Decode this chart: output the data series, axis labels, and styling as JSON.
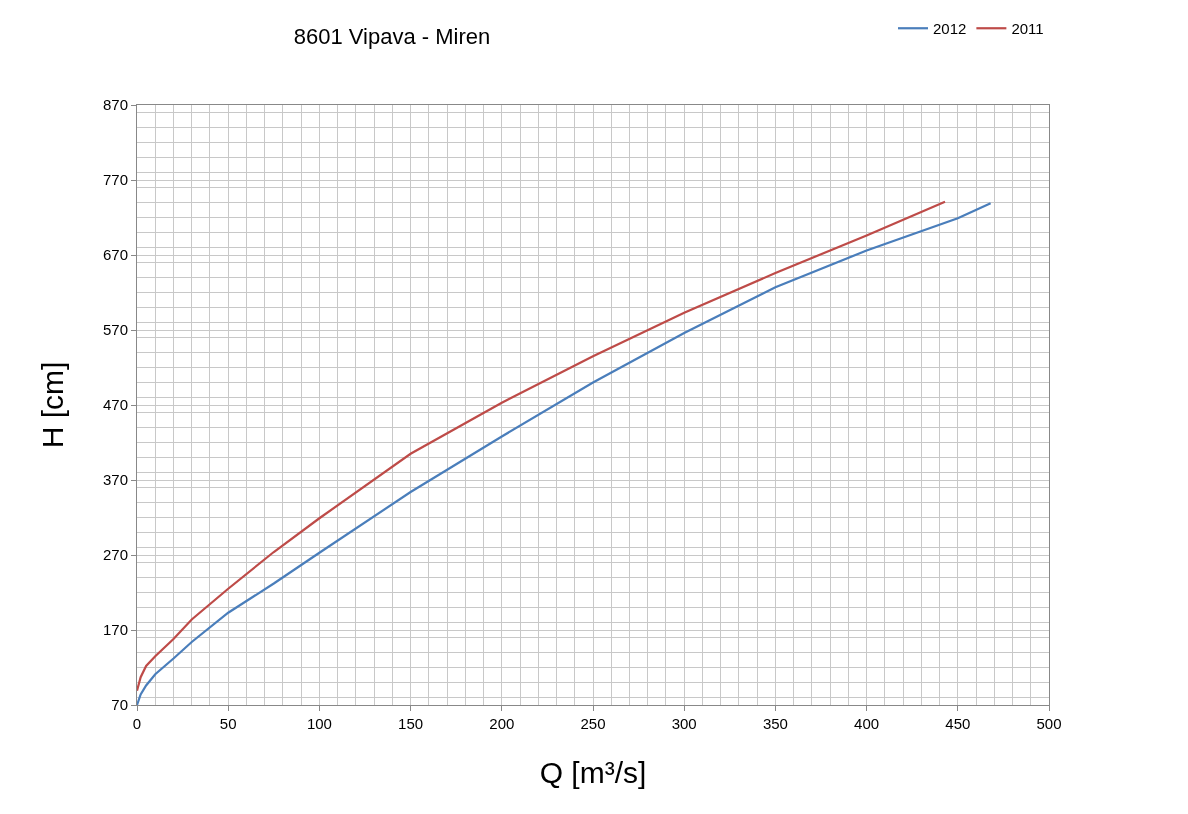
{
  "chart_data": {
    "type": "line",
    "title": "8601 Vipava - Miren",
    "xlabel": "Q [m³/s]",
    "ylabel": "H [cm]",
    "series": [
      {
        "name": "2012",
        "color": "#4a7ebb",
        "x": [
          0,
          2,
          5,
          10,
          20,
          30,
          50,
          75,
          100,
          150,
          200,
          250,
          300,
          350,
          400,
          450,
          468
        ],
        "values": [
          70,
          84,
          96,
          111,
          132,
          154,
          193,
          232,
          273,
          354,
          428,
          500,
          566,
          627,
          676,
          719,
          739
        ]
      },
      {
        "name": "2011",
        "color": "#be4b48",
        "x": [
          0,
          2,
          5,
          10,
          20,
          30,
          50,
          75,
          100,
          150,
          200,
          250,
          300,
          350,
          400,
          443
        ],
        "values": [
          89,
          107,
          122,
          135,
          158,
          184,
          225,
          274,
          319,
          405,
          473,
          535,
          593,
          646,
          696,
          741
        ]
      }
    ],
    "xlim": [
      0,
      500
    ],
    "xticks": [
      0,
      50,
      100,
      150,
      200,
      250,
      300,
      350,
      400,
      450,
      500
    ],
    "ylim": [
      70,
      870
    ],
    "yticks": [
      70,
      170,
      270,
      370,
      470,
      570,
      670,
      770,
      870
    ],
    "grid": true,
    "legend": "top right",
    "marker": "none",
    "line_style": "solid"
  }
}
